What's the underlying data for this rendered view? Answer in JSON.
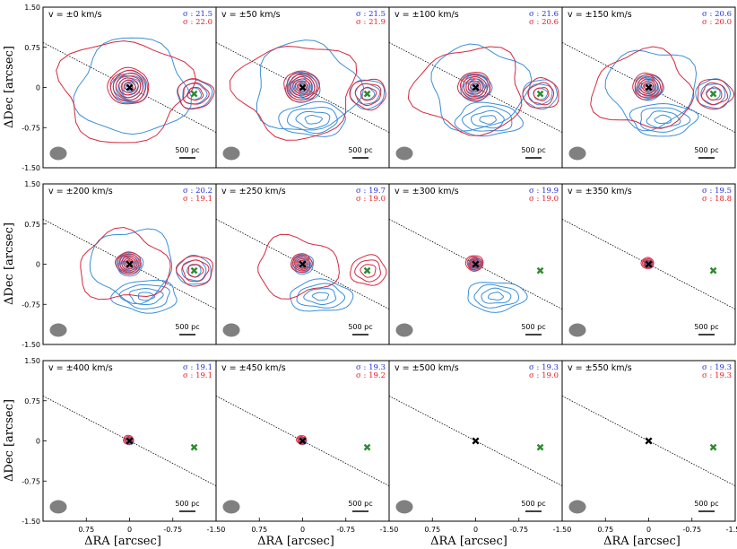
{
  "colors": {
    "blue": "#3b8fd9",
    "red": "#d6283f",
    "sigma_blue": "#1f2fd6",
    "sigma_red": "#e01b24",
    "marker_black": "#000000",
    "marker_green": "#2e8b2e",
    "beam": "#808080"
  },
  "chart_data": {
    "type": "contour",
    "title": "",
    "xlabel": "ΔRA [arcsec]",
    "ylabel": "ΔDec [arcsec]",
    "xlim": [
      1.5,
      -1.5
    ],
    "ylim": [
      -1.5,
      1.5
    ],
    "x_ticks": [
      "0.75",
      "0",
      "-0.75",
      "-1.50"
    ],
    "y_ticks": [
      "1.50",
      "0.75",
      "0",
      "-0.75",
      "-1.50"
    ],
    "scale_bar_label": "500 pc",
    "sigma_prefix": "σ : ",
    "grid": false,
    "nucleus": {
      "x": 0,
      "y": 0
    },
    "companion": {
      "x": -1.12,
      "y": -0.12
    },
    "position_angle_line": {
      "slope": -0.56
    },
    "panels": [
      {
        "velocity": "v = ±0 km/s",
        "sigma_blue": "21.5",
        "sigma_red": "22.0",
        "blue_level": 1.0,
        "red_level": 1.0
      },
      {
        "velocity": "v = ±50 km/s",
        "sigma_blue": "21.5",
        "sigma_red": "21.9",
        "blue_level": 0.95,
        "red_level": 0.9
      },
      {
        "velocity": "v = ±100 km/s",
        "sigma_blue": "21.6",
        "sigma_red": "20.6",
        "blue_level": 0.9,
        "red_level": 0.85
      },
      {
        "velocity": "v = ±150 km/s",
        "sigma_blue": "20.6",
        "sigma_red": "20.0",
        "blue_level": 0.85,
        "red_level": 0.8
      },
      {
        "velocity": "v = ±200 km/s",
        "sigma_blue": "20.2",
        "sigma_red": "19.1",
        "blue_level": 0.8,
        "red_level": 0.7
      },
      {
        "velocity": "v = ±250 km/s",
        "sigma_blue": "19.7",
        "sigma_red": "19.0",
        "blue_level": 0.7,
        "red_level": 0.6
      },
      {
        "velocity": "v = ±300 km/s",
        "sigma_blue": "19.9",
        "sigma_red": "19.0",
        "blue_level": 0.45,
        "red_level": 0.5
      },
      {
        "velocity": "v = ±350 km/s",
        "sigma_blue": "19.5",
        "sigma_red": "18.8",
        "blue_level": 0.2,
        "red_level": 0.3
      },
      {
        "velocity": "v = ±400 km/s",
        "sigma_blue": "19.1",
        "sigma_red": "19.1",
        "blue_level": 0.12,
        "red_level": 0.12
      },
      {
        "velocity": "v = ±450 km/s",
        "sigma_blue": "19.3",
        "sigma_red": "19.2",
        "blue_level": 0.06,
        "red_level": 0.06
      },
      {
        "velocity": "v = ±500 km/s",
        "sigma_blue": "19.3",
        "sigma_red": "19.0",
        "blue_level": 0,
        "red_level": 0
      },
      {
        "velocity": "v = ±550 km/s",
        "sigma_blue": "19.3",
        "sigma_red": "19.3",
        "blue_level": 0,
        "red_level": 0
      }
    ]
  }
}
